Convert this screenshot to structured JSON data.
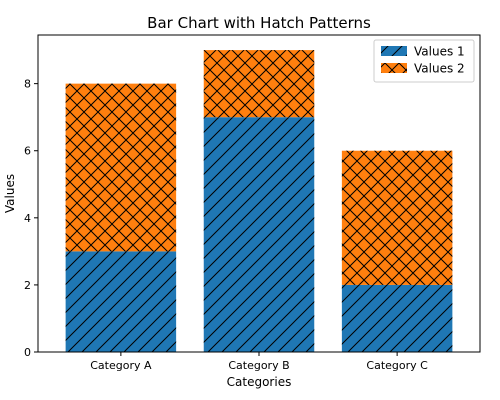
{
  "chart_data": {
    "type": "bar",
    "stacked": true,
    "title": "Bar Chart with Hatch Patterns",
    "xlabel": "Categories",
    "ylabel": "Values",
    "categories": [
      "Category A",
      "Category B",
      "Category C"
    ],
    "ylim": [
      0,
      9.45
    ],
    "yticks": [
      0,
      2,
      4,
      6,
      8
    ],
    "grid": false,
    "legend_position": "top-right",
    "series": [
      {
        "name": "Values 1",
        "values": [
          3,
          7,
          2
        ],
        "color": "#1f77b4",
        "hatch": "diagonal"
      },
      {
        "name": "Values 2",
        "values": [
          5,
          2,
          4
        ],
        "color": "#ff7f0e",
        "hatch": "crosshatch"
      }
    ]
  }
}
